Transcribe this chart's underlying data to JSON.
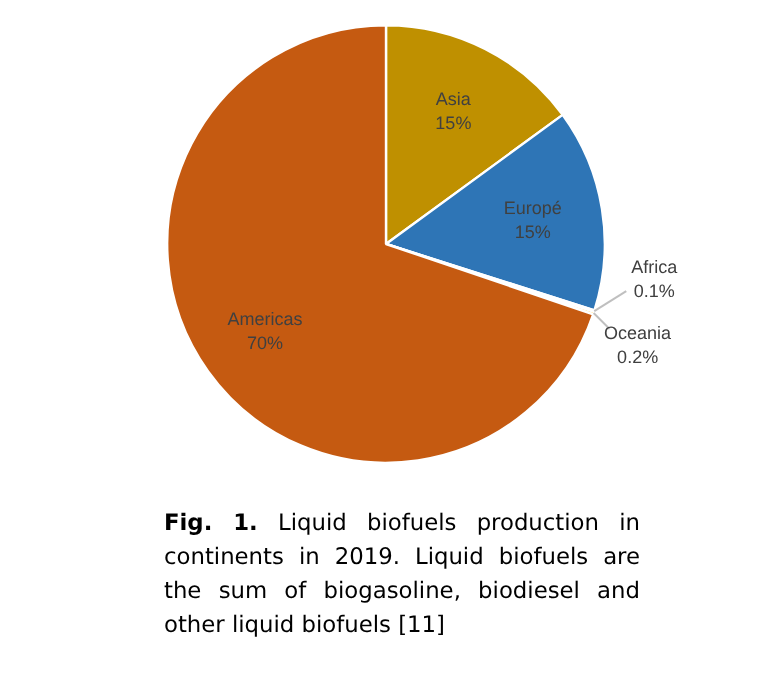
{
  "chart_data": {
    "type": "pie",
    "categories": [
      "Asia",
      "Europé",
      "Africa",
      "Oceania",
      "Americas"
    ],
    "values": [
      15,
      15,
      0.1,
      0.2,
      70
    ],
    "value_labels": [
      "15%",
      "15%",
      "0.1%",
      "0.2%",
      "70%"
    ],
    "colors": [
      "#bf9000",
      "#2e75b6",
      "#a5a5a5",
      "#ffc000",
      "#c55a11"
    ],
    "legend": false,
    "annotations": [
      "Fig. 1.",
      "Liquid biofuels production in continents in 2019. Liquid biofuels are the sum of biogasoline, biodiesel and other liquid biofuels [11]"
    ]
  }
}
